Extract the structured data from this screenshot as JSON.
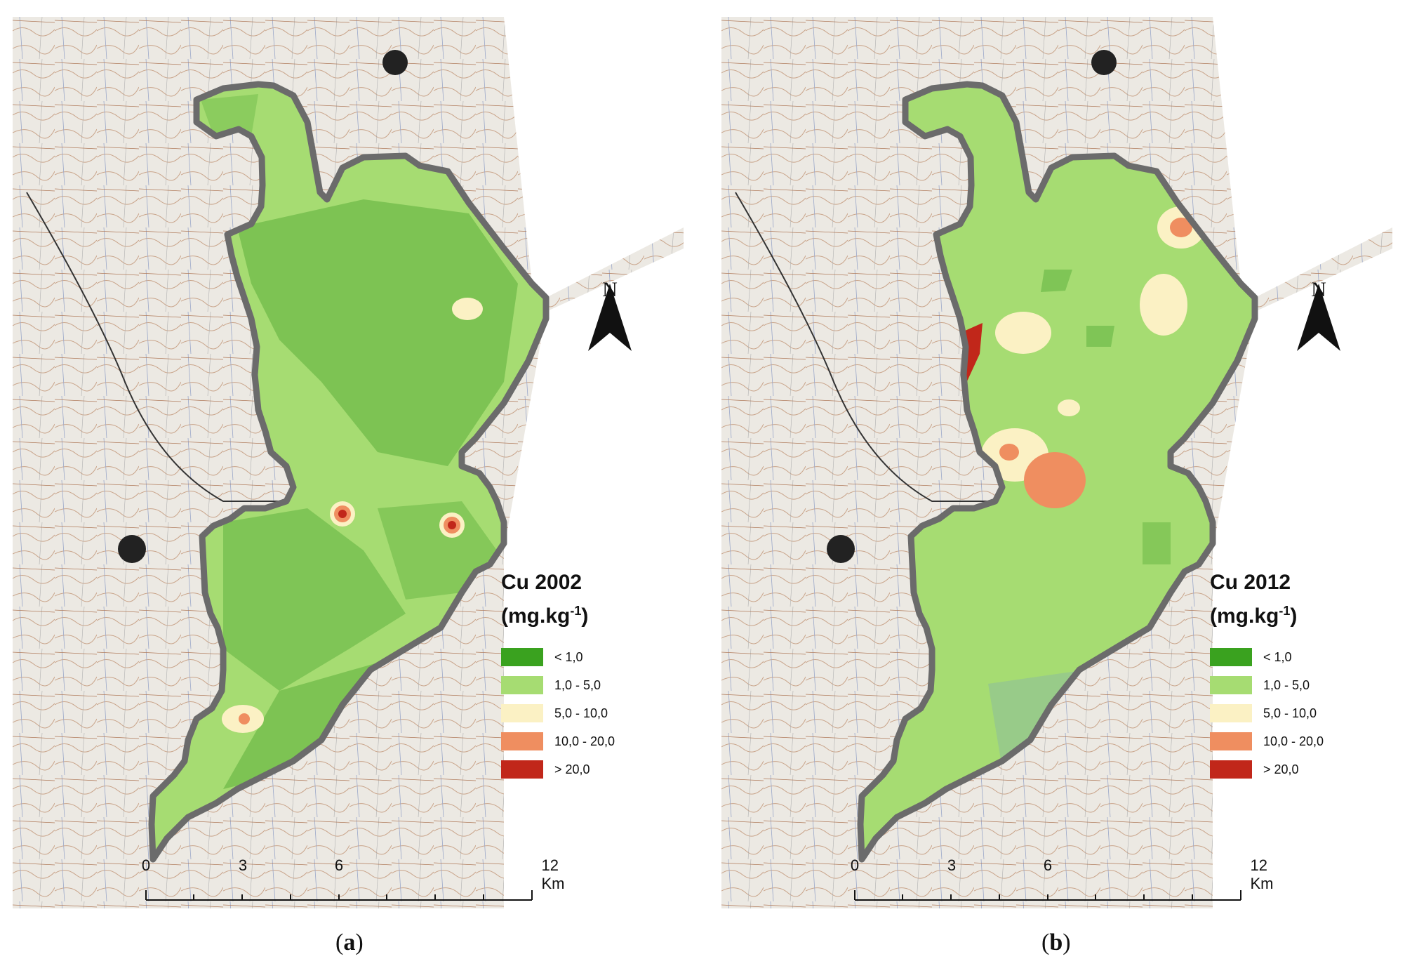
{
  "panels": [
    {
      "id": "a",
      "legend_title": "Cu 2002",
      "legend_unit_base": "(mg.kg",
      "legend_unit_sup": "-1",
      "legend_unit_end": ")",
      "caption_open": "(",
      "caption_letter": "a",
      "caption_close": ")"
    },
    {
      "id": "b",
      "legend_title": "Cu 2012",
      "legend_unit_base": "(mg.kg",
      "legend_unit_sup": "-1",
      "legend_unit_end": ")",
      "caption_open": "(",
      "caption_letter": "b",
      "caption_close": ")"
    }
  ],
  "legend_classes": [
    {
      "label": "< 1,0",
      "color": "#3aa21f"
    },
    {
      "label": "1,0 - 5,0",
      "color": "#a6dc72"
    },
    {
      "label": "5,0 - 10,0",
      "color": "#fbf1c4"
    },
    {
      "label": "10,0 - 20,0",
      "color": "#ef8e60"
    },
    {
      "label": "> 20,0",
      "color": "#c1271a"
    }
  ],
  "north_label": "N",
  "scale_bar": {
    "ticks": [
      "0",
      "3",
      "6",
      "12 Km"
    ]
  },
  "colors": {
    "boundary": "#6b6b6b",
    "base_map": "#ece9e3",
    "dark_green_zone": "#6fbb4a",
    "light_green_zone": "#a6dc72"
  }
}
